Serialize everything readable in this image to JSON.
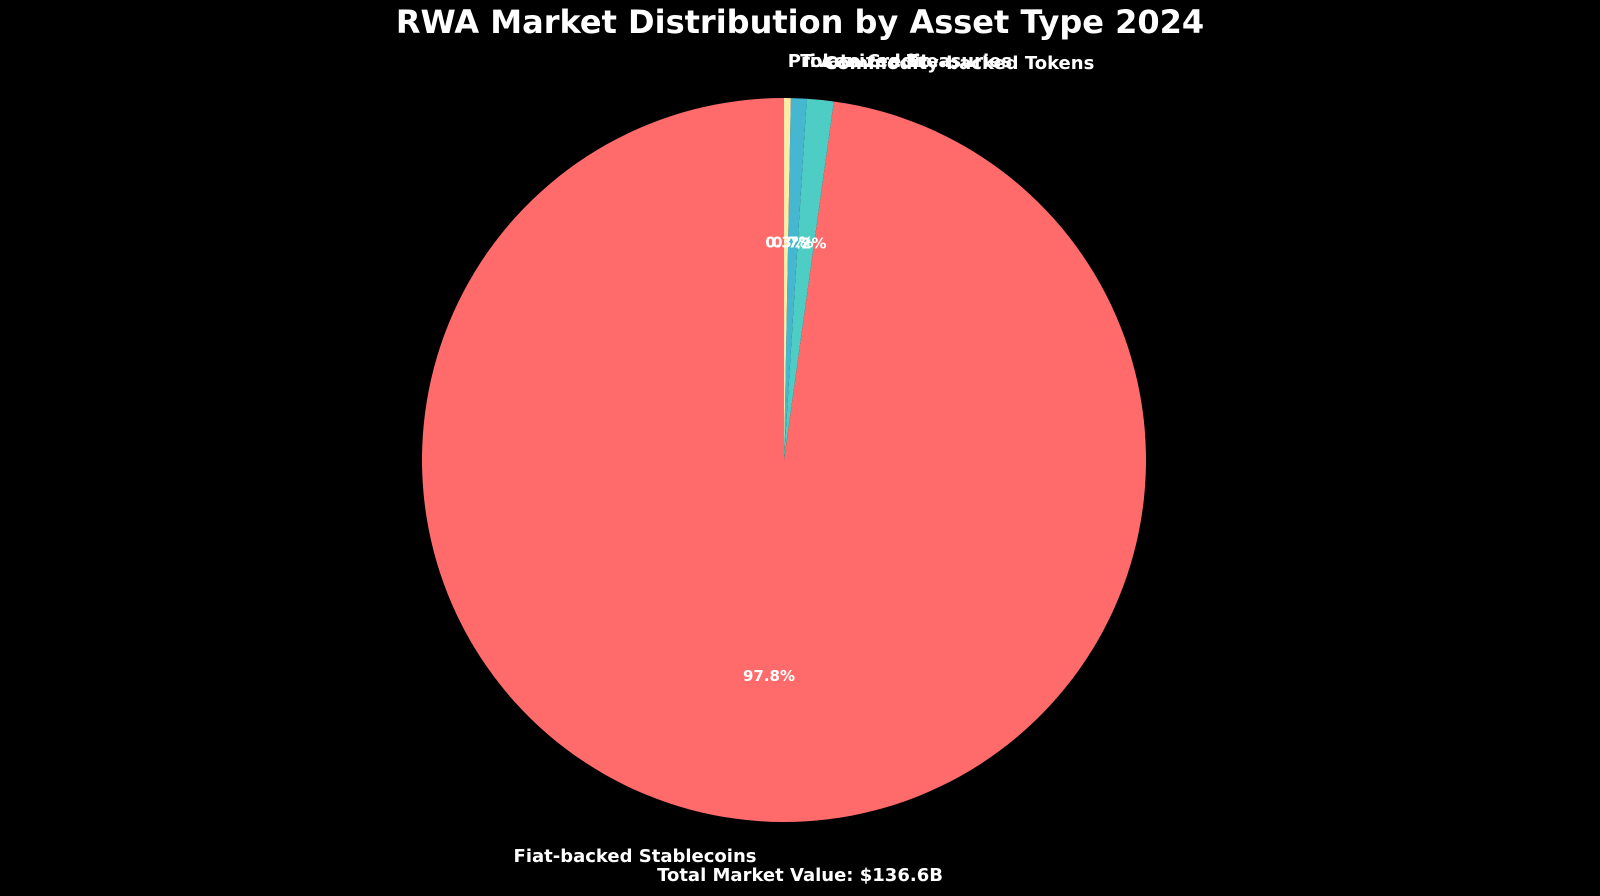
{
  "chart_data": {
    "type": "pie",
    "title": "RWA Market Distribution by Asset Type 2024",
    "categories": [
      "Fiat-backed Stablecoins",
      "Commodity-backed Tokens",
      "Tokenized Treasuries",
      "Private Credit"
    ],
    "values": [
      97.8,
      1.2,
      0.7,
      0.3
    ],
    "value_labels": [
      "97.8%",
      "1.2%",
      "0.7%",
      "0.3%"
    ],
    "colors": [
      "#ff6b6b",
      "#4ecdc4",
      "#45b7d1",
      "#ffeaa7"
    ],
    "start_angle": 90,
    "annotation": "Total Market Value: $136.6B"
  }
}
